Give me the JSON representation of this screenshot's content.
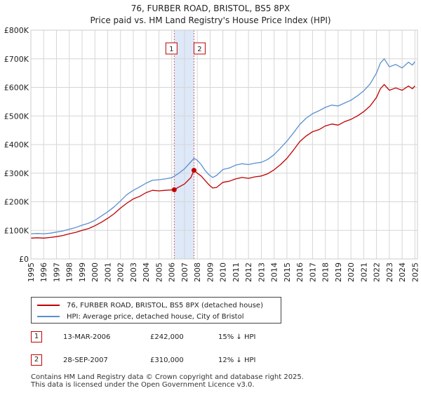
{
  "header": {
    "title": "76, FURBER ROAD, BRISTOL, BS5 8PX",
    "subtitle": "Price paid vs. HM Land Registry's House Price Index (HPI)"
  },
  "chart_data": {
    "type": "line",
    "title": "76, FURBER ROAD, BRISTOL, BS5 8PX",
    "subtitle": "Price paid vs. HM Land Registry's House Price Index (HPI)",
    "xlabel": "",
    "ylabel": "",
    "xlim": [
      1995,
      2025.2
    ],
    "ylim": [
      0,
      800000
    ],
    "y_ticks": [
      0,
      100000,
      200000,
      300000,
      400000,
      500000,
      600000,
      700000,
      800000
    ],
    "y_tick_labels": [
      "£0",
      "£100K",
      "£200K",
      "£300K",
      "£400K",
      "£500K",
      "£600K",
      "£700K",
      "£800K"
    ],
    "x_ticks": [
      "1995",
      "1996",
      "1997",
      "1998",
      "1999",
      "2000",
      "2001",
      "2002",
      "2003",
      "2004",
      "2005",
      "2006",
      "2007",
      "2008",
      "2009",
      "2010",
      "2011",
      "2012",
      "2013",
      "2014",
      "2015",
      "2016",
      "2017",
      "2018",
      "2019",
      "2020",
      "2021",
      "2022",
      "2023",
      "2024",
      "2025"
    ],
    "grid": true,
    "colors": {
      "property": "#c00000",
      "hpi": "#5a8fd0",
      "band": "#dde8f8",
      "grid": "#d6d6d6",
      "vline": "#d06060"
    },
    "series": [
      {
        "name": "76, FURBER ROAD, BRISTOL, BS5 8PX (detached house)",
        "x": [
          1995,
          1995.5,
          1996,
          1996.5,
          1997,
          1997.5,
          1998,
          1998.5,
          1999,
          1999.5,
          2000,
          2000.5,
          2001,
          2001.5,
          2002,
          2002.5,
          2003,
          2003.5,
          2004,
          2004.5,
          2005,
          2005.5,
          2006.2,
          2006.5,
          2007,
          2007.5,
          2007.74,
          2008,
          2008.3,
          2008.6,
          2008.9,
          2009.2,
          2009.5,
          2010,
          2010.5,
          2011,
          2011.5,
          2012,
          2012.5,
          2013,
          2013.5,
          2014,
          2014.5,
          2015,
          2015.5,
          2016,
          2016.5,
          2017,
          2017.5,
          2018,
          2018.5,
          2019,
          2019.5,
          2020,
          2020.5,
          2021,
          2021.5,
          2022,
          2022.3,
          2022.6,
          2023,
          2023.5,
          2024,
          2024.5,
          2024.8,
          2025
        ],
        "values": [
          73000,
          74000,
          73000,
          75000,
          78000,
          82000,
          88000,
          93000,
          100000,
          106000,
          116000,
          128000,
          142000,
          158000,
          178000,
          195000,
          210000,
          219000,
          232000,
          240000,
          238000,
          240000,
          242000,
          250000,
          262000,
          285000,
          310000,
          300000,
          290000,
          275000,
          260000,
          248000,
          250000,
          268000,
          272000,
          280000,
          285000,
          282000,
          287000,
          290000,
          298000,
          312000,
          330000,
          352000,
          380000,
          410000,
          430000,
          445000,
          452000,
          465000,
          472000,
          468000,
          480000,
          488000,
          500000,
          515000,
          535000,
          565000,
          595000,
          610000,
          590000,
          598000,
          590000,
          605000,
          595000,
          605000
        ]
      },
      {
        "name": "HPI: Average price, detached house, City of Bristol",
        "x": [
          1995,
          1995.5,
          1996,
          1996.5,
          1997,
          1997.5,
          1998,
          1998.5,
          1999,
          1999.5,
          2000,
          2000.5,
          2001,
          2001.5,
          2002,
          2002.5,
          2003,
          2003.5,
          2004,
          2004.5,
          2005,
          2005.5,
          2006,
          2006.5,
          2007,
          2007.5,
          2007.74,
          2008,
          2008.3,
          2008.6,
          2008.9,
          2009.2,
          2009.5,
          2010,
          2010.5,
          2011,
          2011.5,
          2012,
          2012.5,
          2013,
          2013.5,
          2014,
          2014.5,
          2015,
          2015.5,
          2016,
          2016.5,
          2017,
          2017.5,
          2018,
          2018.5,
          2019,
          2019.5,
          2020,
          2020.5,
          2021,
          2021.5,
          2022,
          2022.3,
          2022.6,
          2023,
          2023.5,
          2024,
          2024.5,
          2024.8,
          2025
        ],
        "values": [
          88000,
          89000,
          88000,
          90000,
          94000,
          98000,
          104000,
          110000,
          118000,
          125000,
          135000,
          150000,
          165000,
          182000,
          203000,
          225000,
          240000,
          252000,
          265000,
          275000,
          277000,
          280000,
          284000,
          298000,
          315000,
          340000,
          352000,
          345000,
          330000,
          310000,
          295000,
          285000,
          292000,
          313000,
          318000,
          328000,
          333000,
          330000,
          335000,
          338000,
          348000,
          365000,
          388000,
          412000,
          440000,
          470000,
          492000,
          508000,
          518000,
          530000,
          538000,
          535000,
          545000,
          555000,
          570000,
          588000,
          612000,
          650000,
          685000,
          700000,
          672000,
          680000,
          668000,
          688000,
          678000,
          690000
        ]
      }
    ],
    "sales": [
      {
        "label": "1",
        "x": 2006.2,
        "value": 242000,
        "date": "13-MAR-2006",
        "price": "£242,000",
        "hpi_diff": "15% ↓ HPI"
      },
      {
        "label": "2",
        "x": 2007.74,
        "value": 310000,
        "date": "28-SEP-2007",
        "price": "£310,000",
        "hpi_diff": "12% ↓ HPI"
      }
    ]
  },
  "legend": {
    "property_label": "76, FURBER ROAD, BRISTOL, BS5 8PX (detached house)",
    "hpi_label": "HPI: Average price, detached house, City of Bristol"
  },
  "sales_table": [
    {
      "label": "1",
      "date": "13-MAR-2006",
      "price": "£242,000",
      "hpi_diff": "15% ↓ HPI"
    },
    {
      "label": "2",
      "date": "28-SEP-2007",
      "price": "£310,000",
      "hpi_diff": "12% ↓ HPI"
    }
  ],
  "footer": {
    "line1": "Contains HM Land Registry data © Crown copyright and database right 2025.",
    "line2": "This data is licensed under the Open Government Licence v3.0."
  }
}
